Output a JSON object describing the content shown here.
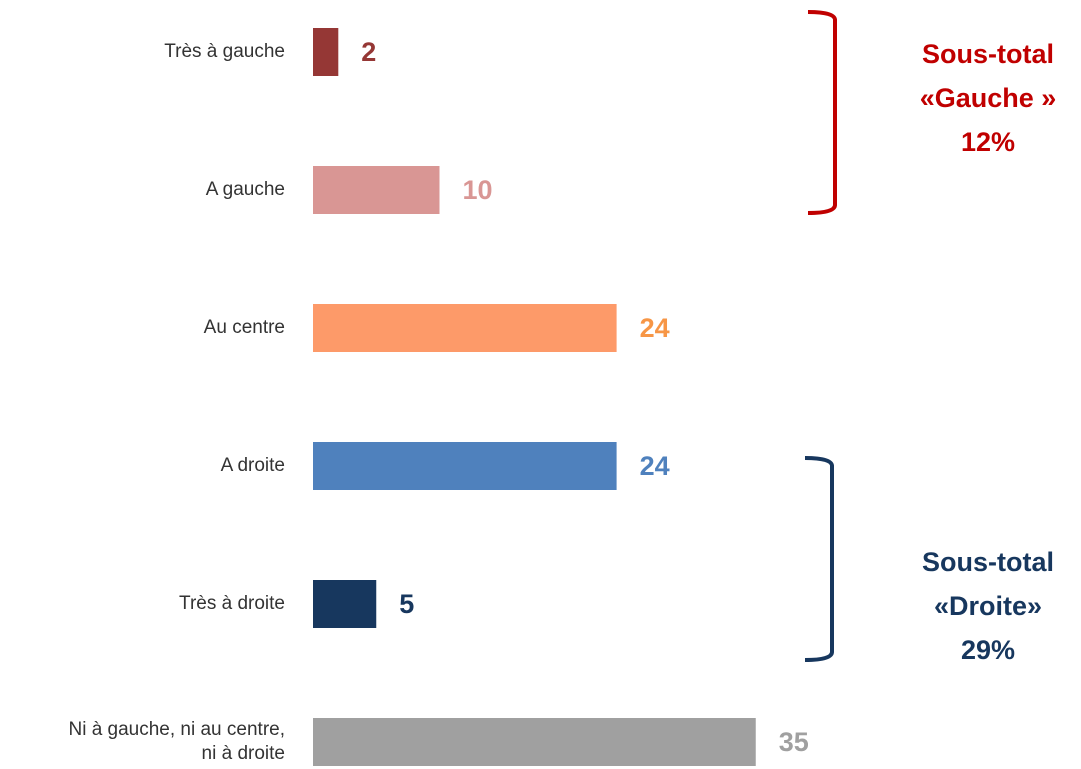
{
  "chart_data": {
    "type": "hbar",
    "categories": [
      "Très à gauche",
      "A gauche",
      "Au centre",
      "A droite",
      "Très à droite",
      "Ni à gauche, ni au centre,\nni à droite"
    ],
    "values": [
      2,
      10,
      24,
      24,
      5,
      35
    ],
    "colors": [
      "#953735",
      "#d99694",
      "#fd9a69",
      "#4f81bd",
      "#17375e",
      "#a0a0a0"
    ],
    "label_colors": [
      "#953735",
      "#d99694",
      "#f79646",
      "#4f81bd",
      "#17375e",
      "#a0a0a0"
    ],
    "annotations": [
      {
        "lines": [
          "Sous-total",
          "«Gauche »",
          "12%"
        ],
        "color": "#c00000"
      },
      {
        "lines": [
          "Sous-total",
          "«Droite»",
          "29%"
        ],
        "color": "#17375e"
      }
    ]
  }
}
